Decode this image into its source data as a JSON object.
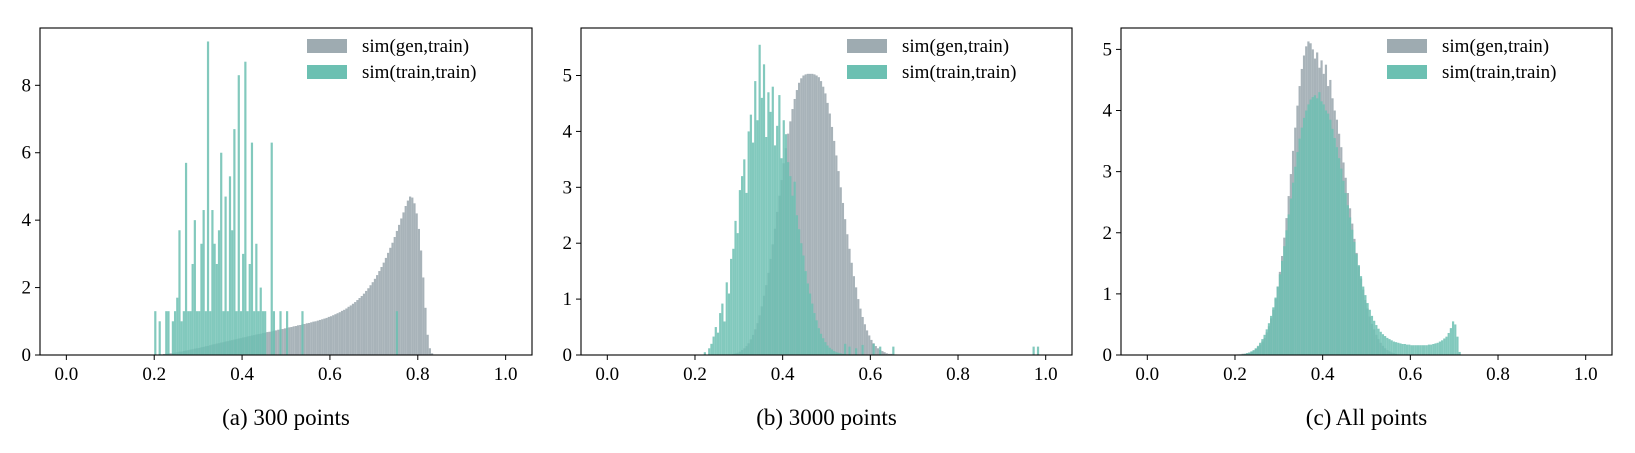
{
  "colors": {
    "gen": "#9eabb1",
    "train": "#6cc0b2",
    "axis": "#000000"
  },
  "chart_data": [
    {
      "type": "histogram",
      "caption": "(a) 300 points",
      "xlim": [
        -0.06,
        1.06
      ],
      "ylim": [
        0,
        9.7
      ],
      "xticks": [
        "0.0",
        "0.2",
        "0.4",
        "0.6",
        "0.8",
        "1.0"
      ],
      "xtick_values": [
        0.0,
        0.2,
        0.4,
        0.6,
        0.8,
        1.0
      ],
      "yticks": [
        "0",
        "2",
        "4",
        "6",
        "8"
      ],
      "ytick_values": [
        0,
        2,
        4,
        6,
        8
      ],
      "legend": [
        "sim(gen,train)",
        "sim(train,train)"
      ],
      "legend_position": "top-right",
      "bin_width": 0.005,
      "series": [
        {
          "name": "sim(gen,train)",
          "color_key": "gen",
          "start": 0.2,
          "values": [
            0.01,
            0.01,
            0.02,
            0.02,
            0.03,
            0.04,
            0.05,
            0.05,
            0.06,
            0.07,
            0.08,
            0.1,
            0.1,
            0.12,
            0.13,
            0.14,
            0.16,
            0.17,
            0.19,
            0.2,
            0.21,
            0.23,
            0.24,
            0.26,
            0.27,
            0.29,
            0.31,
            0.32,
            0.34,
            0.35,
            0.37,
            0.38,
            0.4,
            0.41,
            0.43,
            0.44,
            0.46,
            0.47,
            0.49,
            0.5,
            0.52,
            0.53,
            0.55,
            0.56,
            0.58,
            0.59,
            0.61,
            0.62,
            0.63,
            0.65,
            0.66,
            0.68,
            0.69,
            0.7,
            0.72,
            0.73,
            0.75,
            0.76,
            0.77,
            0.79,
            0.8,
            0.82,
            0.83,
            0.85,
            0.86,
            0.88,
            0.89,
            0.91,
            0.92,
            0.94,
            0.95,
            0.97,
            0.99,
            1.0,
            1.02,
            1.04,
            1.06,
            1.08,
            1.1,
            1.13,
            1.15,
            1.18,
            1.21,
            1.24,
            1.27,
            1.31,
            1.34,
            1.38,
            1.43,
            1.47,
            1.52,
            1.57,
            1.63,
            1.69,
            1.75,
            1.82,
            1.9,
            1.98,
            2.07,
            2.16,
            2.26,
            2.37,
            2.49,
            2.61,
            2.74,
            2.88,
            3.03,
            3.18,
            3.33,
            3.5,
            3.68,
            3.86,
            4.05,
            4.23,
            4.42,
            4.58,
            4.7,
            4.67,
            4.5,
            4.2,
            3.74,
            3.1,
            2.3,
            1.4,
            0.6,
            0.2,
            0.05,
            0.01
          ]
        },
        {
          "name": "sim(train,train)",
          "color_key": "train",
          "start": 0.2,
          "values": [
            1.3,
            0.0,
            1.0,
            0.0,
            0.0,
            1.3,
            1.3,
            0.0,
            1.0,
            1.3,
            1.7,
            3.7,
            1.0,
            1.3,
            5.7,
            1.3,
            1.3,
            2.7,
            4.0,
            1.3,
            1.3,
            3.3,
            4.3,
            1.3,
            9.3,
            1.3,
            4.3,
            3.3,
            2.7,
            3.7,
            6.0,
            1.3,
            4.7,
            1.3,
            5.3,
            3.7,
            6.7,
            1.3,
            8.3,
            1.3,
            3.0,
            8.7,
            1.3,
            2.7,
            6.3,
            1.3,
            3.3,
            1.3,
            2.0,
            1.3,
            1.3,
            0.0,
            0.0,
            6.3,
            1.3,
            0.0,
            0.0,
            1.3,
            0.0,
            0.0,
            1.3,
            0.0,
            0.0,
            0.0,
            0.0,
            0.0,
            0.0,
            1.3,
            0.0,
            0.0,
            0.0,
            0.0,
            0.0,
            0.0,
            0.0,
            0.0,
            0.0,
            0.0,
            0.0,
            0.0,
            0.0,
            0.0,
            0.0,
            0.0,
            0.0,
            0.0,
            0.0,
            0.0,
            0.0,
            0.0,
            0.0,
            0.0,
            0.0,
            0.0,
            0.0,
            0.0,
            0.0,
            0.0,
            0.0,
            0.0,
            0.0,
            0.0,
            0.0,
            0.0,
            0.0,
            0.0,
            0.0,
            0.0,
            0.0,
            0.0,
            1.3,
            0.0,
            0.0,
            0.0,
            0.0,
            0.0,
            0.0,
            0.0,
            0.0,
            0.0,
            0.0,
            0.0,
            0.0,
            0.0,
            0.0,
            0.0,
            0.0,
            0.0,
            0.0,
            0.0,
            0.0,
            0.0,
            0.0,
            0.0,
            0.0,
            0.0,
            0.0,
            0.0,
            0.0,
            0.0
          ]
        }
      ]
    },
    {
      "type": "histogram",
      "caption": "(b) 3000 points",
      "xlim": [
        -0.06,
        1.06
      ],
      "ylim": [
        0,
        5.85
      ],
      "xticks": [
        "0.0",
        "0.2",
        "0.4",
        "0.6",
        "0.8",
        "1.0"
      ],
      "xtick_values": [
        0.0,
        0.2,
        0.4,
        0.6,
        0.8,
        1.0
      ],
      "yticks": [
        "0",
        "1",
        "2",
        "3",
        "4",
        "5"
      ],
      "ytick_values": [
        0,
        1,
        2,
        3,
        4,
        5
      ],
      "legend": [
        "sim(gen,train)",
        "sim(train,train)"
      ],
      "legend_position": "top-right",
      "bin_width": 0.005,
      "series": [
        {
          "name": "sim(gen,train)",
          "color_key": "gen",
          "start": 0.28,
          "values": [
            0.01,
            0.02,
            0.03,
            0.04,
            0.06,
            0.09,
            0.12,
            0.16,
            0.21,
            0.28,
            0.36,
            0.46,
            0.57,
            0.71,
            0.87,
            1.06,
            1.25,
            1.47,
            1.72,
            1.98,
            2.26,
            2.56,
            2.85,
            3.13,
            3.43,
            3.7,
            3.96,
            4.18,
            4.4,
            4.58,
            4.74,
            4.87,
            4.95,
            5.0,
            5.02,
            5.03,
            5.03,
            5.03,
            5.02,
            5.0,
            4.97,
            4.9,
            4.8,
            4.68,
            4.51,
            4.32,
            4.08,
            3.83,
            3.57,
            3.29,
            3.0,
            2.72,
            2.43,
            2.16,
            1.9,
            1.65,
            1.41,
            1.21,
            1.0,
            0.83,
            0.68,
            0.55,
            0.44,
            0.35,
            0.27,
            0.21,
            0.16,
            0.12,
            0.09,
            0.07,
            0.05,
            0.03,
            0.02,
            0.02,
            0.01,
            0.01
          ]
        },
        {
          "name": "sim(train,train)",
          "color_key": "train",
          "start": 0.22,
          "values": [
            0.05,
            0.0,
            0.12,
            0.2,
            0.33,
            0.5,
            0.4,
            0.75,
            0.92,
            0.6,
            1.3,
            1.1,
            1.72,
            1.9,
            2.4,
            2.18,
            2.95,
            3.2,
            3.5,
            2.9,
            4.0,
            4.3,
            3.8,
            4.9,
            4.2,
            5.55,
            4.6,
            5.2,
            3.9,
            4.7,
            4.35,
            4.8,
            3.75,
            4.1,
            4.65,
            3.52,
            4.2,
            3.95,
            3.45,
            3.2,
            2.85,
            3.1,
            2.5,
            2.25,
            2.0,
            1.78,
            1.5,
            1.28,
            1.1,
            0.92,
            0.75,
            0.62,
            0.48,
            0.38,
            0.3,
            0.23,
            0.17,
            0.13,
            0.1,
            0.07,
            0.05,
            0.04,
            0.03,
            0.02,
            0.2,
            0.0,
            0.15,
            0.0,
            0.0,
            0.12,
            0.0,
            0.0,
            0.18,
            0.0,
            0.0,
            0.0,
            0.0,
            0.2,
            0.0,
            0.0,
            0.15,
            0.0,
            0.0,
            0.0,
            0.0,
            0.0,
            0.15,
            0.0,
            0.0,
            0.0,
            0.0,
            0.0,
            0.0,
            0.0,
            0.0,
            0.0,
            0.0,
            0.0,
            0.0,
            0.0,
            0.0,
            0.0,
            0.0,
            0.0,
            0.0,
            0.0,
            0.0,
            0.0,
            0.0,
            0.0,
            0.0,
            0.0,
            0.0,
            0.0,
            0.0,
            0.0,
            0.0,
            0.0,
            0.0,
            0.0,
            0.0,
            0.0,
            0.0,
            0.0,
            0.0,
            0.0,
            0.0,
            0.0,
            0.0,
            0.0,
            0.0,
            0.0,
            0.0,
            0.0,
            0.0,
            0.0,
            0.0,
            0.0,
            0.0,
            0.0,
            0.0,
            0.0,
            0.0,
            0.0,
            0.0,
            0.0,
            0.0,
            0.0,
            0.0,
            0.0,
            0.15,
            0.0,
            0.15,
            0.0
          ]
        }
      ]
    },
    {
      "type": "histogram",
      "caption": "(c) All points",
      "xlim": [
        -0.06,
        1.06
      ],
      "ylim": [
        0,
        5.35
      ],
      "xticks": [
        "0.0",
        "0.2",
        "0.4",
        "0.6",
        "0.8",
        "1.0"
      ],
      "xtick_values": [
        0.0,
        0.2,
        0.4,
        0.6,
        0.8,
        1.0
      ],
      "yticks": [
        "0",
        "1",
        "2",
        "3",
        "4",
        "5"
      ],
      "ytick_values": [
        0,
        1,
        2,
        3,
        4,
        5
      ],
      "legend": [
        "sim(gen,train)",
        "sim(train,train)"
      ],
      "legend_position": "top-right",
      "bin_width": 0.005,
      "series": [
        {
          "name": "sim(gen,train)",
          "color_key": "gen",
          "start": 0.2,
          "values": [
            0.0,
            0.01,
            0.01,
            0.02,
            0.02,
            0.03,
            0.04,
            0.05,
            0.07,
            0.1,
            0.13,
            0.17,
            0.22,
            0.28,
            0.37,
            0.47,
            0.6,
            0.74,
            0.92,
            1.12,
            1.36,
            1.62,
            1.92,
            2.24,
            2.6,
            2.96,
            3.34,
            3.72,
            4.08,
            4.4,
            4.68,
            4.9,
            5.05,
            5.13,
            5.1,
            5.0,
            4.85,
            4.95,
            4.7,
            4.82,
            4.6,
            4.75,
            4.4,
            4.5,
            4.2,
            4.0,
            3.85,
            3.62,
            3.4,
            3.15,
            2.9,
            2.65,
            2.4,
            2.15,
            1.9,
            1.67,
            1.45,
            1.25,
            1.07,
            0.9,
            0.76,
            0.63,
            0.51,
            0.42,
            0.33,
            0.26,
            0.2,
            0.15,
            0.11,
            0.08,
            0.06,
            0.04,
            0.03,
            0.02,
            0.01,
            0.01,
            0.0,
            0.0,
            0.0,
            0.0,
            0.0,
            0.0,
            0.0,
            0.0,
            0.0,
            0.0,
            0.0,
            0.0,
            0.0,
            0.0,
            0.0,
            0.0,
            0.0,
            0.0,
            0.0,
            0.0,
            0.0,
            0.0,
            0.0,
            0.0,
            0.0,
            0.0,
            0.0,
            0.0,
            0.0,
            0.0,
            0.0,
            0.0,
            0.0,
            0.0,
            0.0,
            0.0,
            0.0,
            0.0,
            0.0,
            0.0,
            0.0,
            0.0,
            0.0,
            0.0,
            0.0,
            0.0,
            0.0,
            0.0,
            0.0,
            0.0,
            0.0,
            0.0,
            0.0,
            0.0,
            0.0,
            0.0,
            0.0,
            0.0,
            0.0,
            0.0,
            0.0,
            0.0,
            0.0,
            0.0,
            0.0,
            0.0,
            0.0,
            0.0,
            0.0,
            0.0,
            0.0,
            0.0,
            0.0,
            0.0,
            0.0,
            0.0,
            0.0,
            0.0,
            0.0,
            0.0,
            0.0,
            0.0,
            0.0,
            0.0
          ]
        },
        {
          "name": "sim(train,train)",
          "color_key": "train",
          "start": 0.2,
          "values": [
            0.0,
            0.0,
            0.01,
            0.01,
            0.02,
            0.03,
            0.04,
            0.06,
            0.08,
            0.11,
            0.15,
            0.2,
            0.26,
            0.33,
            0.42,
            0.52,
            0.64,
            0.78,
            0.94,
            1.12,
            1.32,
            1.54,
            1.78,
            2.04,
            2.3,
            2.56,
            2.82,
            3.08,
            3.32,
            3.54,
            3.72,
            3.88,
            4.0,
            4.1,
            4.18,
            4.22,
            4.25,
            4.2,
            4.3,
            4.15,
            4.1,
            4.0,
            3.95,
            3.85,
            3.7,
            3.55,
            3.4,
            3.22,
            3.05,
            2.85,
            2.65,
            2.45,
            2.25,
            2.05,
            1.85,
            1.65,
            1.47,
            1.29,
            1.12,
            0.98,
            0.85,
            0.74,
            0.64,
            0.56,
            0.49,
            0.43,
            0.38,
            0.34,
            0.31,
            0.28,
            0.26,
            0.24,
            0.22,
            0.21,
            0.2,
            0.19,
            0.18,
            0.18,
            0.17,
            0.17,
            0.16,
            0.16,
            0.16,
            0.16,
            0.16,
            0.16,
            0.16,
            0.16,
            0.17,
            0.17,
            0.18,
            0.19,
            0.2,
            0.22,
            0.24,
            0.27,
            0.3,
            0.36,
            0.44,
            0.55,
            0.5,
            0.3,
            0.05,
            0.0,
            0.0,
            0.0,
            0.0,
            0.0,
            0.0,
            0.0,
            0.0,
            0.0,
            0.0,
            0.0,
            0.0,
            0.0,
            0.0,
            0.0,
            0.0,
            0.0,
            0.0,
            0.0,
            0.0,
            0.0,
            0.0,
            0.0,
            0.0,
            0.0,
            0.0,
            0.0,
            0.0,
            0.0,
            0.0,
            0.0,
            0.0,
            0.0,
            0.0,
            0.0,
            0.0,
            0.0,
            0.0,
            0.0,
            0.0,
            0.0,
            0.0,
            0.0,
            0.0,
            0.0,
            0.0,
            0.0,
            0.0,
            0.0,
            0.0,
            0.0,
            0.0,
            0.0,
            0.0,
            0.0,
            0.0,
            0.0,
            0.0,
            0.0
          ]
        }
      ]
    }
  ]
}
